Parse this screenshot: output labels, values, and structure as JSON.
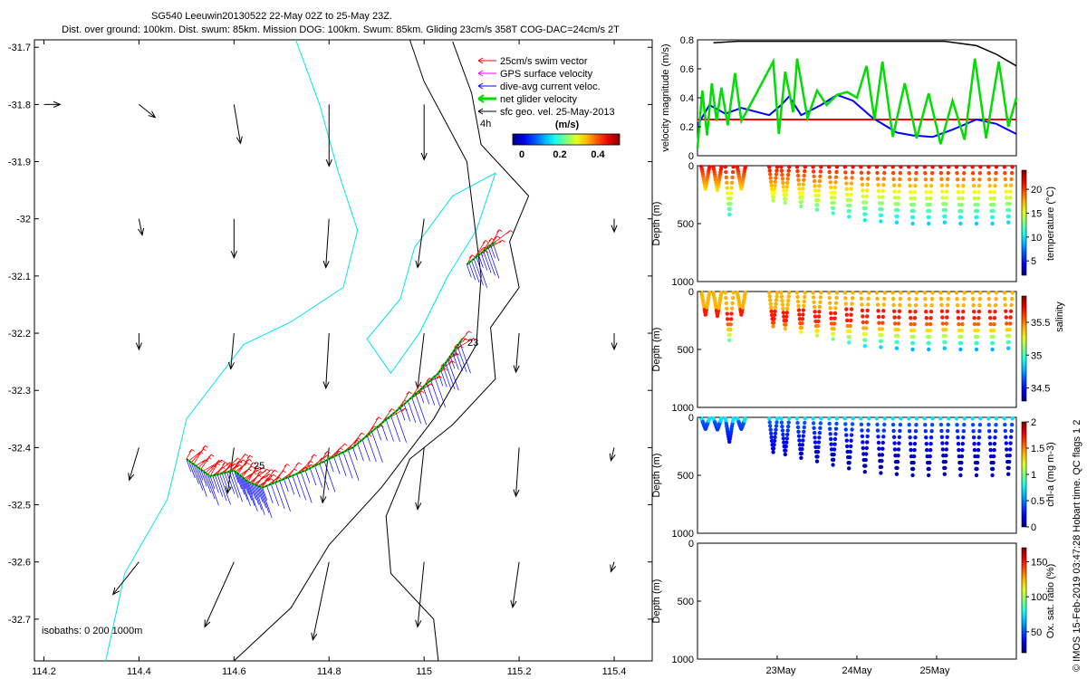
{
  "chart_data": [
    {
      "type": "map",
      "title": "SG540 Leeuwin20130522 22-May 02Z to 25-May 23Z.",
      "subtitle": "Dist. over ground: 100km. Dist. swum: 85km. Mission DOG: 100km. Swum: 85km. Gliding 23cm/s 358T COG-DAC=24cm/s 2T",
      "x_ticks": [
        114.2,
        114.4,
        114.6,
        114.8,
        115,
        115.2,
        115.4
      ],
      "y_ticks": [
        -31.7,
        -31.8,
        -31.9,
        -32,
        -32.1,
        -32.2,
        -32.3,
        -32.4,
        -32.5,
        -32.6,
        -32.7
      ],
      "x_tick_labels": [
        "114.2",
        "114.4",
        "114.6",
        "114.8",
        "115",
        "115.2",
        "115.4"
      ],
      "y_tick_labels": [
        "-31.7",
        "-31.8",
        "-31.9",
        "-32",
        "-32.1",
        "-32.2",
        "-32.3",
        "-32.4",
        "-32.5",
        "-32.6",
        "-32.7"
      ],
      "xlim": [
        114.18,
        115.48
      ],
      "ylim": [
        -32.773,
        -31.687
      ],
      "legend": [
        {
          "label": "25cm/s swim vector",
          "color": "#ff0000"
        },
        {
          "label": "GPS surface velocity",
          "color": "#ff00ff"
        },
        {
          "label": "dive-avg current veloc.",
          "color": "#0000ff"
        },
        {
          "label": "net glider velocity",
          "color": "#00dd00"
        },
        {
          "label": "sfc geo. vel. 25-May-2013",
          "color": "#000000"
        }
      ],
      "legend_time_label": "4h",
      "colorbar": {
        "title": "(m/s)",
        "ticks": [
          "0",
          "0.2",
          "0.4"
        ],
        "range": [
          0,
          0.5
        ]
      },
      "isobath_label": "isobaths: 0   200   1000m",
      "track_labels": [
        "23",
        "25"
      ],
      "glider_track": [
        {
          "lon": 114.5,
          "lat": -32.42
        },
        {
          "lon": 114.55,
          "lat": -32.45
        },
        {
          "lon": 114.6,
          "lat": -32.44
        },
        {
          "lon": 114.63,
          "lat": -32.46
        },
        {
          "lon": 114.66,
          "lat": -32.47
        },
        {
          "lon": 114.75,
          "lat": -32.44
        },
        {
          "lon": 114.85,
          "lat": -32.4
        },
        {
          "lon": 114.95,
          "lat": -32.33
        },
        {
          "lon": 115.03,
          "lat": -32.27
        },
        {
          "lon": 115.08,
          "lat": -32.21
        }
      ],
      "glider_track_2": [
        {
          "lon": 115.09,
          "lat": -32.08
        },
        {
          "lon": 115.12,
          "lat": -32.06
        },
        {
          "lon": 115.15,
          "lat": -32.04
        }
      ],
      "coast": [
        {
          "lon": 115.06,
          "lat": -31.69
        },
        {
          "lon": 115.1,
          "lat": -31.78
        },
        {
          "lon": 115.12,
          "lat": -31.87
        },
        {
          "lon": 115.22,
          "lat": -31.96
        },
        {
          "lon": 115.18,
          "lat": -32.04
        },
        {
          "lon": 115.2,
          "lat": -32.12
        },
        {
          "lon": 115.14,
          "lat": -32.19
        },
        {
          "lon": 115.15,
          "lat": -32.28
        },
        {
          "lon": 115.06,
          "lat": -32.36
        },
        {
          "lon": 114.97,
          "lat": -32.42
        },
        {
          "lon": 114.92,
          "lat": -32.52
        },
        {
          "lon": 114.93,
          "lat": -32.62
        },
        {
          "lon": 115.02,
          "lat": -32.7
        },
        {
          "lon": 115.03,
          "lat": -32.773
        }
      ],
      "isobath_200": [
        {
          "lon": 114.6,
          "lat": -32.773
        },
        {
          "lon": 114.72,
          "lat": -32.68
        },
        {
          "lon": 114.8,
          "lat": -32.57
        },
        {
          "lon": 114.91,
          "lat": -32.47
        },
        {
          "lon": 115.02,
          "lat": -32.35
        },
        {
          "lon": 115.11,
          "lat": -32.22
        },
        {
          "lon": 115.12,
          "lat": -32.1
        },
        {
          "lon": 115.09,
          "lat": -31.9
        },
        {
          "lon": 115.0,
          "lat": -31.76
        },
        {
          "lon": 114.97,
          "lat": -31.687
        }
      ],
      "isobath_1000": [
        {
          "lon": 114.33,
          "lat": -32.773
        },
        {
          "lon": 114.37,
          "lat": -32.62
        },
        {
          "lon": 114.46,
          "lat": -32.49
        },
        {
          "lon": 114.5,
          "lat": -32.35
        },
        {
          "lon": 114.62,
          "lat": -32.22
        },
        {
          "lon": 114.72,
          "lat": -32.18
        },
        {
          "lon": 114.83,
          "lat": -32.12
        },
        {
          "lon": 114.86,
          "lat": -32.02
        },
        {
          "lon": 114.82,
          "lat": -31.92
        },
        {
          "lon": 114.78,
          "lat": -31.8
        },
        {
          "lon": 114.73,
          "lat": -31.687
        }
      ],
      "isobath_1000_loop": [
        {
          "lon": 114.98,
          "lat": -32.05
        },
        {
          "lon": 115.06,
          "lat": -31.96
        },
        {
          "lon": 115.15,
          "lat": -31.92
        },
        {
          "lon": 115.11,
          "lat": -32.02
        },
        {
          "lon": 115.05,
          "lat": -32.1
        },
        {
          "lon": 114.99,
          "lat": -32.2
        },
        {
          "lon": 114.93,
          "lat": -32.27
        },
        {
          "lon": 114.88,
          "lat": -32.21
        },
        {
          "lon": 114.95,
          "lat": -32.14
        }
      ],
      "geo_vectors": [
        {
          "lon": 114.2,
          "lat": -31.8,
          "u": 0.05,
          "v": 0
        },
        {
          "lon": 114.4,
          "lat": -31.8,
          "u": 0.05,
          "v": -0.04
        },
        {
          "lon": 114.6,
          "lat": -31.8,
          "u": 0.02,
          "v": -0.12
        },
        {
          "lon": 114.8,
          "lat": -31.8,
          "u": 0.0,
          "v": -0.19
        },
        {
          "lon": 115.0,
          "lat": -31.8,
          "u": 0.0,
          "v": -0.17
        },
        {
          "lon": 114.4,
          "lat": -32.0,
          "u": 0.01,
          "v": -0.05
        },
        {
          "lon": 114.6,
          "lat": -32.0,
          "u": 0.0,
          "v": -0.12
        },
        {
          "lon": 114.8,
          "lat": -32.0,
          "u": -0.01,
          "v": -0.15
        },
        {
          "lon": 115.0,
          "lat": -32.0,
          "u": -0.02,
          "v": -0.15
        },
        {
          "lon": 115.4,
          "lat": -32.0,
          "u": 0.0,
          "v": -0.04
        },
        {
          "lon": 114.4,
          "lat": -32.2,
          "u": 0.0,
          "v": -0.05
        },
        {
          "lon": 114.6,
          "lat": -32.2,
          "u": -0.01,
          "v": -0.11
        },
        {
          "lon": 114.8,
          "lat": -32.2,
          "u": -0.01,
          "v": -0.17
        },
        {
          "lon": 115.0,
          "lat": -32.2,
          "u": -0.02,
          "v": -0.17
        },
        {
          "lon": 115.2,
          "lat": -32.2,
          "u": -0.01,
          "v": -0.12
        },
        {
          "lon": 115.4,
          "lat": -32.2,
          "u": 0.0,
          "v": -0.05
        },
        {
          "lon": 114.4,
          "lat": -32.4,
          "u": -0.03,
          "v": -0.1
        },
        {
          "lon": 114.6,
          "lat": -32.4,
          "u": -0.02,
          "v": -0.14
        },
        {
          "lon": 114.8,
          "lat": -32.4,
          "u": -0.02,
          "v": -0.17
        },
        {
          "lon": 115.0,
          "lat": -32.4,
          "u": -0.02,
          "v": -0.19
        },
        {
          "lon": 115.2,
          "lat": -32.4,
          "u": -0.01,
          "v": -0.15
        },
        {
          "lon": 115.4,
          "lat": -32.4,
          "u": -0.01,
          "v": -0.04
        },
        {
          "lon": 114.4,
          "lat": -32.6,
          "u": -0.08,
          "v": -0.1
        },
        {
          "lon": 114.6,
          "lat": -32.6,
          "u": -0.09,
          "v": -0.2
        },
        {
          "lon": 114.8,
          "lat": -32.6,
          "u": -0.05,
          "v": -0.24
        },
        {
          "lon": 115.0,
          "lat": -32.6,
          "u": -0.02,
          "v": -0.2
        },
        {
          "lon": 115.2,
          "lat": -32.6,
          "u": -0.02,
          "v": -0.14
        },
        {
          "lon": 115.4,
          "lat": -32.6,
          "u": -0.01,
          "v": -0.03
        }
      ]
    },
    {
      "type": "line",
      "ylabel": "velocity magnitude (m/s)",
      "ylim": [
        0,
        0.8
      ],
      "y_ticks": [
        0,
        0.2,
        0.4,
        0.6,
        0.8
      ],
      "y_tick_labels": [
        "0",
        "0.2",
        "0.4",
        "0.6",
        "0.8"
      ],
      "xlim": [
        22.0,
        26.0
      ],
      "series": [
        {
          "name": "swim speed",
          "color": "#ff0000",
          "x": [
            22.0,
            26.0
          ],
          "y": [
            0.25,
            0.25
          ]
        },
        {
          "name": "dive-avg current",
          "color": "#0000ff",
          "x": [
            22.0,
            22.15,
            22.35,
            22.55,
            22.9,
            23.05,
            23.15,
            23.3,
            23.55,
            23.75,
            23.95,
            24.2,
            24.5,
            24.7,
            24.95,
            25.2,
            25.5,
            25.75,
            26.0
          ],
          "y": [
            0.21,
            0.35,
            0.29,
            0.33,
            0.28,
            0.35,
            0.41,
            0.28,
            0.35,
            0.42,
            0.38,
            0.26,
            0.16,
            0.14,
            0.13,
            0.18,
            0.25,
            0.22,
            0.15
          ]
        },
        {
          "name": "net glider velocity",
          "color": "#00dd00",
          "x": [
            22.0,
            22.06,
            22.12,
            22.18,
            22.24,
            22.3,
            22.38,
            22.47,
            22.55,
            22.7,
            22.95,
            23.02,
            23.1,
            23.2,
            23.25,
            23.38,
            23.5,
            23.62,
            23.75,
            23.88,
            24.0,
            24.12,
            24.22,
            24.32,
            24.45,
            24.6,
            24.75,
            24.9,
            25.05,
            25.2,
            25.35,
            25.48,
            25.62,
            25.78,
            25.9,
            26.0
          ],
          "y": [
            0.05,
            0.45,
            0.14,
            0.5,
            0.24,
            0.47,
            0.21,
            0.57,
            0.24,
            0.39,
            0.65,
            0.15,
            0.58,
            0.3,
            0.67,
            0.26,
            0.45,
            0.35,
            0.42,
            0.44,
            0.4,
            0.62,
            0.25,
            0.65,
            0.13,
            0.5,
            0.12,
            0.43,
            0.08,
            0.38,
            0.11,
            0.67,
            0.12,
            0.65,
            0.2,
            0.4
          ]
        },
        {
          "name": "surface",
          "color": "#000000",
          "x": [
            22.2,
            22.5,
            24.8,
            25.1,
            25.5,
            25.75,
            26.0
          ],
          "y": [
            0.78,
            0.82,
            0.82,
            0.8,
            0.76,
            0.7,
            0.62
          ]
        }
      ]
    },
    {
      "type": "scatter",
      "ylabel": "Depth (m)",
      "colorbar_label": "temperature (°C)",
      "y_ticks": [
        0,
        500,
        1000
      ],
      "y_tick_labels": [
        "0",
        "500",
        "1000"
      ],
      "colorbar_ticks": [
        "5",
        "10",
        "15",
        "20"
      ],
      "colorbar_range": [
        2,
        24
      ],
      "dives": [
        {
          "t": 22.1,
          "max_depth": 200
        },
        {
          "t": 22.25,
          "max_depth": 210
        },
        {
          "t": 22.4,
          "max_depth": 420
        },
        {
          "t": 22.55,
          "max_depth": 200
        },
        {
          "t": 22.95,
          "max_depth": 300
        },
        {
          "t": 23.1,
          "max_depth": 320
        },
        {
          "t": 23.3,
          "max_depth": 350
        },
        {
          "t": 23.5,
          "max_depth": 380
        },
        {
          "t": 23.7,
          "max_depth": 410
        },
        {
          "t": 23.9,
          "max_depth": 440
        },
        {
          "t": 24.1,
          "max_depth": 470
        },
        {
          "t": 24.3,
          "max_depth": 480
        },
        {
          "t": 24.5,
          "max_depth": 490
        },
        {
          "t": 24.7,
          "max_depth": 500
        },
        {
          "t": 24.9,
          "max_depth": 500
        },
        {
          "t": 25.1,
          "max_depth": 490
        },
        {
          "t": 25.3,
          "max_depth": 500
        },
        {
          "t": 25.5,
          "max_depth": 500
        },
        {
          "t": 25.7,
          "max_depth": 500
        },
        {
          "t": 25.9,
          "max_depth": 490
        }
      ]
    },
    {
      "type": "scatter",
      "ylabel": "Depth (m)",
      "colorbar_label": "salinity",
      "y_ticks": [
        0,
        500,
        1000
      ],
      "y_tick_labels": [
        "0",
        "500",
        "1000"
      ],
      "colorbar_ticks": [
        "34.5",
        "35",
        "35.5"
      ],
      "colorbar_range": [
        34.3,
        35.9
      ]
    },
    {
      "type": "scatter",
      "ylabel": "Depth (m)",
      "colorbar_label": "chl-a (mg m-3)",
      "y_ticks": [
        0,
        500,
        1000
      ],
      "y_tick_labels": [
        "0",
        "500",
        "1000"
      ],
      "colorbar_ticks": [
        "0",
        "0.5",
        "1",
        "1.5",
        "2"
      ],
      "colorbar_range": [
        0,
        2
      ]
    },
    {
      "type": "scatter",
      "ylabel": "Depth (m)",
      "colorbar_label": "Ox. sat. ratio (%)",
      "y_ticks": [
        0,
        500,
        1000
      ],
      "y_tick_labels": [
        "0",
        "500",
        "1000"
      ],
      "colorbar_ticks": [
        "50",
        "100",
        "150"
      ],
      "colorbar_range": [
        20,
        170
      ]
    }
  ],
  "time_axis": {
    "ticks": [
      23,
      24,
      25
    ],
    "labels": [
      "23May",
      "24May",
      "25May"
    ]
  },
  "footer": "© IMOS 15-Feb-2019 03:47:28 Hobart time. QC flags 1  2"
}
